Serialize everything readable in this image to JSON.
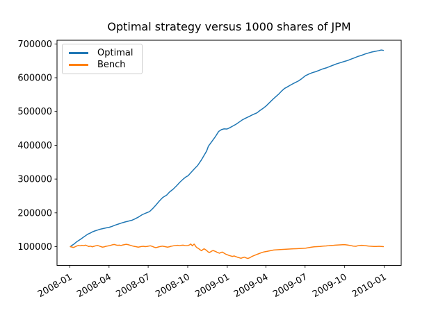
{
  "chart": {
    "title": "Optimal strategy versus 1000 shares of JPM"
  },
  "legend": {
    "items": [
      {
        "label": "Optimal",
        "color": "#1f77b4"
      },
      {
        "label": "Bench",
        "color": "#ff7f0e"
      }
    ],
    "position": "upper left"
  },
  "chart_data": {
    "type": "line",
    "title": "Optimal strategy versus 1000 shares of JPM",
    "xlabel": "",
    "ylabel": "",
    "grid": false,
    "legend_position": "upper left",
    "x_axis": {
      "unit": "days since 2008-01-01",
      "tick_labels": [
        "2008-01",
        "2008-04",
        "2008-07",
        "2008-10",
        "2009-01",
        "2009-04",
        "2009-07",
        "2009-10",
        "2010-01"
      ],
      "tick_days": [
        0,
        91,
        182,
        274,
        366,
        456,
        547,
        639,
        731
      ],
      "xlim_days": [
        -30,
        770.5
      ],
      "tick_rotation_deg": 30
    },
    "y_axis": {
      "tick_values": [
        100000,
        200000,
        300000,
        400000,
        500000,
        600000,
        700000
      ],
      "tick_labels": [
        "100000",
        "200000",
        "300000",
        "400000",
        "500000",
        "600000",
        "700000"
      ],
      "ylim": [
        44600,
        710900
      ]
    },
    "series": [
      {
        "name": "Optimal",
        "color": "#1f77b4",
        "points": [
          [
            1,
            100000
          ],
          [
            5,
            104000
          ],
          [
            9,
            107000
          ],
          [
            13,
            111500
          ],
          [
            17,
            115500
          ],
          [
            22,
            119500
          ],
          [
            27,
            124000
          ],
          [
            32,
            128500
          ],
          [
            36,
            132000
          ],
          [
            41,
            136500
          ],
          [
            47,
            140000
          ],
          [
            52,
            143500
          ],
          [
            58,
            146500
          ],
          [
            64,
            149000
          ],
          [
            70,
            151500
          ],
          [
            77,
            153500
          ],
          [
            84,
            155500
          ],
          [
            91,
            157000
          ],
          [
            98,
            160000
          ],
          [
            105,
            163500
          ],
          [
            112,
            166500
          ],
          [
            120,
            170000
          ],
          [
            128,
            173000
          ],
          [
            136,
            175500
          ],
          [
            144,
            178000
          ],
          [
            152,
            182500
          ],
          [
            160,
            188000
          ],
          [
            168,
            194500
          ],
          [
            176,
            199000
          ],
          [
            185,
            203500
          ],
          [
            192,
            212000
          ],
          [
            200,
            223000
          ],
          [
            208,
            235000
          ],
          [
            216,
            245500
          ],
          [
            225,
            252500
          ],
          [
            232,
            262000
          ],
          [
            240,
            270000
          ],
          [
            248,
            280000
          ],
          [
            256,
            291000
          ],
          [
            264,
            300500
          ],
          [
            270,
            306500
          ],
          [
            275,
            310000
          ],
          [
            282,
            320000
          ],
          [
            290,
            331000
          ],
          [
            297,
            340000
          ],
          [
            305,
            355000
          ],
          [
            312,
            370000
          ],
          [
            318,
            383000
          ],
          [
            322,
            397000
          ],
          [
            330,
            411000
          ],
          [
            338,
            425000
          ],
          [
            346,
            441000
          ],
          [
            352,
            446000
          ],
          [
            358,
            448500
          ],
          [
            365,
            448000
          ],
          [
            372,
            452000
          ],
          [
            379,
            457000
          ],
          [
            386,
            462000
          ],
          [
            394,
            469000
          ],
          [
            402,
            476000
          ],
          [
            410,
            481000
          ],
          [
            418,
            486000
          ],
          [
            426,
            491000
          ],
          [
            435,
            496000
          ],
          [
            442,
            503000
          ],
          [
            450,
            510000
          ],
          [
            456,
            516000
          ],
          [
            464,
            526000
          ],
          [
            472,
            536000
          ],
          [
            478,
            543000
          ],
          [
            486,
            552000
          ],
          [
            492,
            560000
          ],
          [
            499,
            568000
          ],
          [
            506,
            573000
          ],
          [
            514,
            579000
          ],
          [
            523,
            585000
          ],
          [
            531,
            590000
          ],
          [
            539,
            597000
          ],
          [
            548,
            606000
          ],
          [
            556,
            611000
          ],
          [
            564,
            615000
          ],
          [
            572,
            618000
          ],
          [
            580,
            622000
          ],
          [
            588,
            626000
          ],
          [
            596,
            629000
          ],
          [
            604,
            633000
          ],
          [
            612,
            637000
          ],
          [
            620,
            641000
          ],
          [
            628,
            644000
          ],
          [
            638,
            648000
          ],
          [
            646,
            651000
          ],
          [
            654,
            655000
          ],
          [
            662,
            659000
          ],
          [
            670,
            663000
          ],
          [
            678,
            666000
          ],
          [
            686,
            670000
          ],
          [
            694,
            673000
          ],
          [
            702,
            676000
          ],
          [
            710,
            678000
          ],
          [
            718,
            680000
          ],
          [
            724,
            682000
          ],
          [
            729,
            681000
          ]
        ]
      },
      {
        "name": "Bench",
        "color": "#ff7f0e",
        "points": [
          [
            1,
            100000
          ],
          [
            4,
            99000
          ],
          [
            8,
            97500
          ],
          [
            12,
            99500
          ],
          [
            16,
            102000
          ],
          [
            20,
            103500
          ],
          [
            24,
            102500
          ],
          [
            28,
            104000
          ],
          [
            32,
            103000
          ],
          [
            36,
            104500
          ],
          [
            40,
            102500
          ],
          [
            44,
            100500
          ],
          [
            48,
            101500
          ],
          [
            52,
            99500
          ],
          [
            56,
            101000
          ],
          [
            60,
            102500
          ],
          [
            64,
            103500
          ],
          [
            68,
            102000
          ],
          [
            72,
            100000
          ],
          [
            76,
            98500
          ],
          [
            80,
            99500
          ],
          [
            84,
            101000
          ],
          [
            88,
            102000
          ],
          [
            91,
            102500
          ],
          [
            95,
            104000
          ],
          [
            99,
            105500
          ],
          [
            103,
            106500
          ],
          [
            107,
            105000
          ],
          [
            111,
            104000
          ],
          [
            115,
            104500
          ],
          [
            119,
            103500
          ],
          [
            123,
            105000
          ],
          [
            127,
            106000
          ],
          [
            131,
            107000
          ],
          [
            135,
            106000
          ],
          [
            139,
            104500
          ],
          [
            143,
            103000
          ],
          [
            147,
            101500
          ],
          [
            151,
            100500
          ],
          [
            155,
            99500
          ],
          [
            159,
            98500
          ],
          [
            163,
            99500
          ],
          [
            167,
            100500
          ],
          [
            171,
            101000
          ],
          [
            175,
            100000
          ],
          [
            179,
            100500
          ],
          [
            183,
            101500
          ],
          [
            187,
            102500
          ],
          [
            191,
            101000
          ],
          [
            195,
            99000
          ],
          [
            199,
            97000
          ],
          [
            203,
            98000
          ],
          [
            207,
            99500
          ],
          [
            211,
            100500
          ],
          [
            215,
            101500
          ],
          [
            219,
            100500
          ],
          [
            223,
            99500
          ],
          [
            227,
            98500
          ],
          [
            231,
            99500
          ],
          [
            235,
            101000
          ],
          [
            239,
            102000
          ],
          [
            243,
            103000
          ],
          [
            247,
            103500
          ],
          [
            251,
            104000
          ],
          [
            255,
            103000
          ],
          [
            259,
            104000
          ],
          [
            263,
            104500
          ],
          [
            267,
            103500
          ],
          [
            271,
            103000
          ],
          [
            275,
            103500
          ],
          [
            279,
            105500
          ],
          [
            281,
            108000
          ],
          [
            283,
            105000
          ],
          [
            285,
            102500
          ],
          [
            287,
            105500
          ],
          [
            289,
            107500
          ],
          [
            291,
            104000
          ],
          [
            293,
            100000
          ],
          [
            295,
            97500
          ],
          [
            297,
            96000
          ],
          [
            300,
            93500
          ],
          [
            303,
            90500
          ],
          [
            306,
            88000
          ],
          [
            309,
            91000
          ],
          [
            312,
            93500
          ],
          [
            315,
            91500
          ],
          [
            318,
            88500
          ],
          [
            321,
            85000
          ],
          [
            324,
            82500
          ],
          [
            327,
            84500
          ],
          [
            330,
            87000
          ],
          [
            333,
            88500
          ],
          [
            336,
            87000
          ],
          [
            339,
            85500
          ],
          [
            342,
            83500
          ],
          [
            345,
            82000
          ],
          [
            348,
            80500
          ],
          [
            351,
            82500
          ],
          [
            354,
            84000
          ],
          [
            357,
            82000
          ],
          [
            360,
            79500
          ],
          [
            363,
            77500
          ],
          [
            366,
            76000
          ],
          [
            370,
            74000
          ],
          [
            374,
            72500
          ],
          [
            378,
            71000
          ],
          [
            382,
            72500
          ],
          [
            386,
            70500
          ],
          [
            390,
            68500
          ],
          [
            394,
            67000
          ],
          [
            398,
            65500
          ],
          [
            402,
            67500
          ],
          [
            406,
            69000
          ],
          [
            410,
            66500
          ],
          [
            414,
            65000
          ],
          [
            418,
            67000
          ],
          [
            422,
            70000
          ],
          [
            426,
            72500
          ],
          [
            430,
            74500
          ],
          [
            434,
            76500
          ],
          [
            438,
            78500
          ],
          [
            442,
            80500
          ],
          [
            446,
            82500
          ],
          [
            450,
            84000
          ],
          [
            456,
            85500
          ],
          [
            462,
            87000
          ],
          [
            468,
            88500
          ],
          [
            474,
            90000
          ],
          [
            480,
            90500
          ],
          [
            486,
            91000
          ],
          [
            492,
            91500
          ],
          [
            499,
            92000
          ],
          [
            506,
            92500
          ],
          [
            513,
            93000
          ],
          [
            520,
            93500
          ],
          [
            527,
            94000
          ],
          [
            534,
            94500
          ],
          [
            541,
            95000
          ],
          [
            548,
            95500
          ],
          [
            555,
            97000
          ],
          [
            562,
            98500
          ],
          [
            568,
            99500
          ],
          [
            575,
            100000
          ],
          [
            582,
            100500
          ],
          [
            589,
            101500
          ],
          [
            596,
            102000
          ],
          [
            603,
            103000
          ],
          [
            610,
            103500
          ],
          [
            617,
            104500
          ],
          [
            624,
            105000
          ],
          [
            631,
            105500
          ],
          [
            638,
            106000
          ],
          [
            645,
            105000
          ],
          [
            652,
            103500
          ],
          [
            659,
            101500
          ],
          [
            665,
            101000
          ],
          [
            671,
            103000
          ],
          [
            677,
            104000
          ],
          [
            683,
            103500
          ],
          [
            689,
            102500
          ],
          [
            695,
            101500
          ],
          [
            701,
            101000
          ],
          [
            707,
            100500
          ],
          [
            713,
            100500
          ],
          [
            719,
            101000
          ],
          [
            724,
            100500
          ],
          [
            729,
            100000
          ]
        ]
      }
    ]
  }
}
